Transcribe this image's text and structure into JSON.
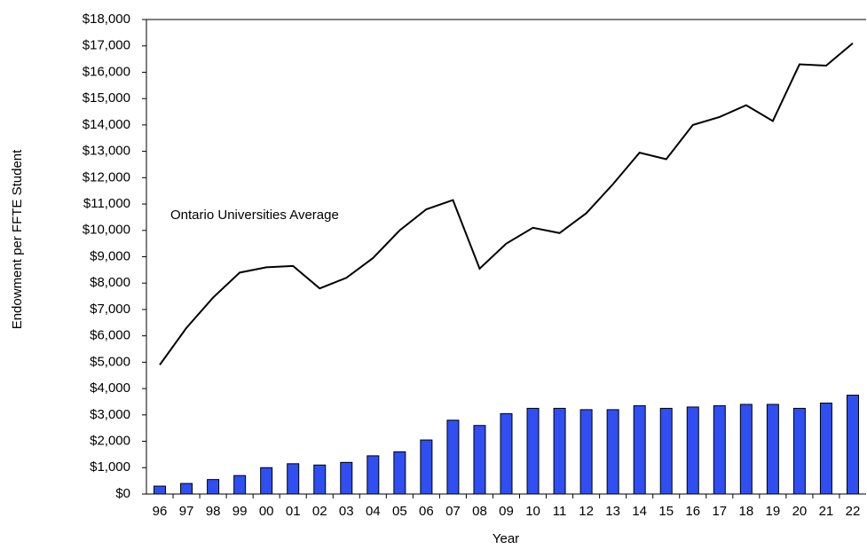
{
  "chart_data": {
    "type": "bar",
    "x_label": "Year",
    "y_label": "Endowment per FFTE Student",
    "categories": [
      "96",
      "97",
      "98",
      "99",
      "00",
      "01",
      "02",
      "03",
      "04",
      "05",
      "06",
      "07",
      "08",
      "09",
      "10",
      "11",
      "12",
      "13",
      "14",
      "15",
      "16",
      "17",
      "18",
      "19",
      "20",
      "21",
      "22"
    ],
    "series": [
      {
        "name": "Ontario Universities Average",
        "type": "line",
        "color": "#000000",
        "values": [
          4900,
          6300,
          7450,
          8400,
          8600,
          8650,
          7800,
          8200,
          8950,
          10000,
          10800,
          11150,
          8550,
          9500,
          10100,
          9900,
          10650,
          11750,
          12950,
          12700,
          14000,
          14300,
          14750,
          14150,
          16300,
          16250,
          17100
        ]
      },
      {
        "type": "bar",
        "color": "#2f4ff2",
        "values": [
          300,
          400,
          550,
          700,
          1000,
          1150,
          1100,
          1200,
          1450,
          1600,
          2050,
          2800,
          2600,
          3050,
          3250,
          3250,
          3200,
          3200,
          3350,
          3250,
          3300,
          3350,
          3400,
          3400,
          3250,
          3450,
          3750
        ]
      }
    ],
    "ylim": [
      0,
      18000
    ],
    "yticks": [
      {
        "value": 0,
        "label": "$0"
      },
      {
        "value": 1000,
        "label": "$1,000"
      },
      {
        "value": 2000,
        "label": "$2,000"
      },
      {
        "value": 3000,
        "label": "$3,000"
      },
      {
        "value": 4000,
        "label": "$4,000"
      },
      {
        "value": 5000,
        "label": "$5,000"
      },
      {
        "value": 6000,
        "label": "$6,000"
      },
      {
        "value": 7000,
        "label": "$7,000"
      },
      {
        "value": 8000,
        "label": "$8,000"
      },
      {
        "value": 9000,
        "label": "$9,000"
      },
      {
        "value": 10000,
        "label": "$10,000"
      },
      {
        "value": 11000,
        "label": "$11,000"
      },
      {
        "value": 12000,
        "label": "$12,000"
      },
      {
        "value": 13000,
        "label": "$13,000"
      },
      {
        "value": 14000,
        "label": "$14,000"
      },
      {
        "value": 15000,
        "label": "$15,000"
      },
      {
        "value": 16000,
        "label": "$16,000"
      },
      {
        "value": 17000,
        "label": "$17,000"
      },
      {
        "value": 18000,
        "label": "$18,000"
      }
    ],
    "grid": false
  }
}
